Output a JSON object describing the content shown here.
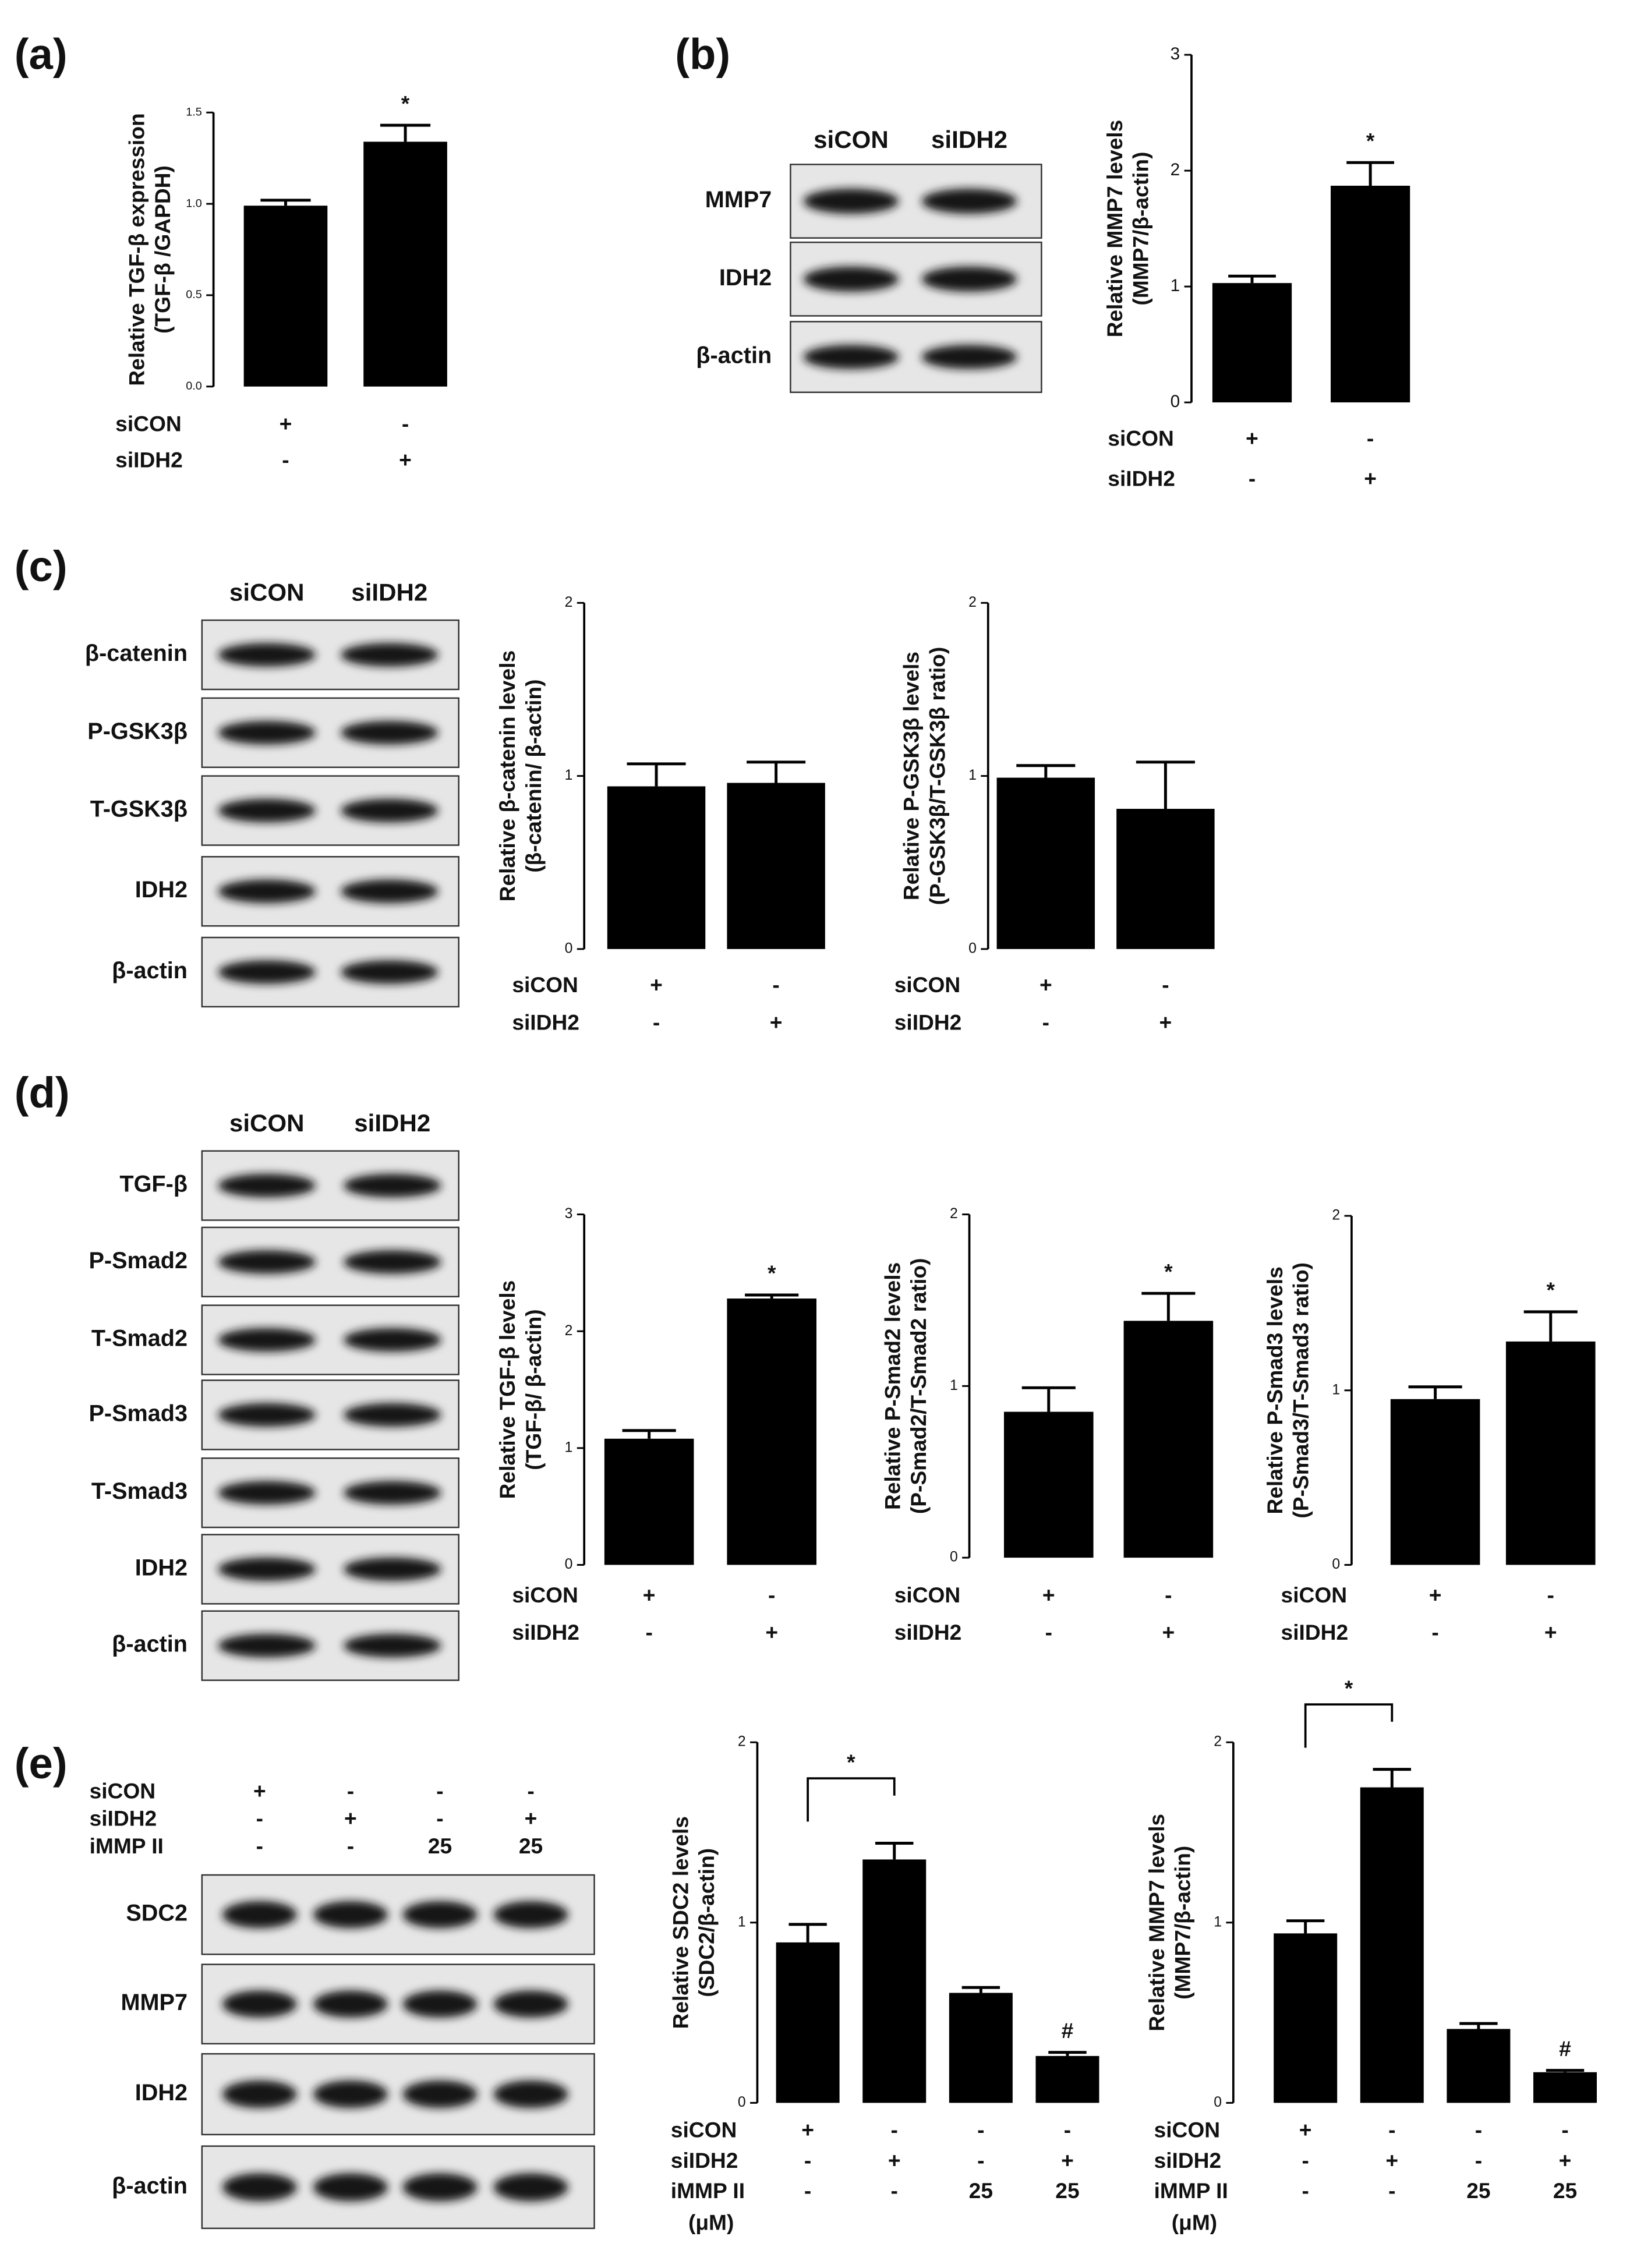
{
  "panels": [
    "(a)",
    "(b)",
    "(c)",
    "(d)",
    "(e)"
  ],
  "chart_data": [
    {
      "type": "bar",
      "y_label": [
        "Relative TGF-β expression",
        "(TGF-β /GAPDH)"
      ],
      "ylim": [
        0,
        1.5
      ],
      "yticks": [
        {
          "value": 0,
          "label": "0.0"
        },
        {
          "value": 0.5,
          "label": "0.5"
        },
        {
          "value": 1,
          "label": "1.0"
        },
        {
          "value": 1.5,
          "label": "1.5"
        }
      ],
      "values": [
        0.99,
        1.34
      ],
      "errors": [
        0.03,
        0.09
      ],
      "significance": [
        null,
        "*"
      ],
      "color": "#000000",
      "conditions": [
        {
          "name": "siCON",
          "values": [
            "+",
            "-"
          ]
        },
        {
          "name": "siIDH2",
          "values": [
            "-",
            "+"
          ]
        }
      ]
    },
    {
      "type": "bar",
      "y_label": [
        "Relative MMP7 levels",
        "(MMP7/β-actin)"
      ],
      "ylim": [
        0,
        3
      ],
      "yticks": [
        0,
        1,
        2,
        3
      ],
      "values": [
        1.03,
        1.87
      ],
      "errors": [
        0.06,
        0.2
      ],
      "significance": [
        null,
        "*"
      ],
      "color": "#000000",
      "conditions": [
        {
          "name": "siCON",
          "values": [
            "+",
            "-"
          ]
        },
        {
          "name": "siIDH2",
          "values": [
            "-",
            "+"
          ]
        }
      ]
    },
    {
      "type": "bar",
      "y_label": [
        "Relative β-catenin levels",
        "(β-catenin/ β-actin)"
      ],
      "ylim": [
        0,
        2
      ],
      "yticks": [
        0,
        1,
        2
      ],
      "values": [
        0.94,
        0.96
      ],
      "errors": [
        0.13,
        0.12
      ],
      "color": "#000000",
      "conditions": [
        {
          "name": "siCON",
          "values": [
            "+",
            "-"
          ]
        },
        {
          "name": "siIDH2",
          "values": [
            "-",
            "+"
          ]
        }
      ]
    },
    {
      "type": "bar",
      "y_label": [
        "Relative P-GSK3β levels",
        "(P-GSK3β/T-GSK3β ratio)"
      ],
      "ylim": [
        0,
        2
      ],
      "yticks": [
        0,
        1,
        2
      ],
      "values": [
        0.99,
        0.81
      ],
      "errors": [
        0.07,
        0.27
      ],
      "color": "#000000",
      "conditions": [
        {
          "name": "siCON",
          "values": [
            "+",
            "-"
          ]
        },
        {
          "name": "siIDH2",
          "values": [
            "-",
            "+"
          ]
        }
      ]
    },
    {
      "type": "bar",
      "y_label": [
        "Relative TGF-β levels",
        "(TGF-β/ β-actin)"
      ],
      "ylim": [
        0,
        3
      ],
      "yticks": [
        0,
        1,
        2,
        3
      ],
      "values": [
        1.08,
        2.28
      ],
      "errors": [
        0.07,
        0.03
      ],
      "significance": [
        null,
        "*"
      ],
      "color": "#000000",
      "conditions": [
        {
          "name": "siCON",
          "values": [
            "+",
            "-"
          ]
        },
        {
          "name": "siIDH2",
          "values": [
            "-",
            "+"
          ]
        }
      ]
    },
    {
      "type": "bar",
      "y_label": [
        "Relative P-Smad2 levels",
        "(P-Smad2/T-Smad2 ratio)"
      ],
      "ylim": [
        0,
        2
      ],
      "yticks": [
        0,
        1,
        2
      ],
      "values": [
        0.85,
        1.38
      ],
      "errors": [
        0.14,
        0.16
      ],
      "significance": [
        null,
        "*"
      ],
      "color": "#000000",
      "conditions": [
        {
          "name": "siCON",
          "values": [
            "+",
            "-"
          ]
        },
        {
          "name": "siIDH2",
          "values": [
            "-",
            "+"
          ]
        }
      ]
    },
    {
      "type": "bar",
      "y_label": [
        "Relative P-Smad3 levels",
        "(P-Smad3/T-Smad3 ratio)"
      ],
      "ylim": [
        0,
        2
      ],
      "yticks": [
        0,
        1,
        2
      ],
      "values": [
        0.95,
        1.28
      ],
      "errors": [
        0.07,
        0.17
      ],
      "significance": [
        null,
        "*"
      ],
      "color": "#000000",
      "conditions": [
        {
          "name": "siCON",
          "values": [
            "+",
            "-"
          ]
        },
        {
          "name": "siIDH2",
          "values": [
            "-",
            "+"
          ]
        }
      ]
    },
    {
      "type": "bar",
      "y_label": [
        "Relative SDC2 levels",
        "(SDC2/β-actin)"
      ],
      "ylim": [
        0,
        2
      ],
      "yticks": [
        0,
        1,
        2
      ],
      "values": [
        0.89,
        1.35,
        0.61,
        0.26
      ],
      "errors": [
        0.1,
        0.09,
        0.03,
        0.02
      ],
      "significance": [
        null,
        null,
        null,
        "#"
      ],
      "bracket": {
        "text": "*",
        "from": 0,
        "to": 1
      },
      "color": "#000000",
      "conditions": [
        {
          "name": "siCON",
          "values": [
            "+",
            "-",
            "-",
            "-"
          ]
        },
        {
          "name": "siIDH2",
          "values": [
            "-",
            "+",
            "-",
            "+"
          ]
        },
        {
          "name": "iMMP II",
          "values": [
            "-",
            "-",
            25,
            25
          ],
          "unit": "(μM)"
        }
      ]
    },
    {
      "type": "bar",
      "y_label": [
        "Relative MMP7 levels",
        "(MMP7/β-actin)"
      ],
      "ylim": [
        0,
        2
      ],
      "yticks": [
        0,
        1,
        2
      ],
      "values": [
        0.94,
        1.75,
        0.41,
        0.17
      ],
      "errors": [
        0.07,
        0.1,
        0.03,
        0.01
      ],
      "significance": [
        null,
        null,
        null,
        "#"
      ],
      "bracket": {
        "text": "*",
        "from": 0,
        "to": 1
      },
      "color": "#000000",
      "conditions": [
        {
          "name": "siCON",
          "values": [
            "+",
            "-",
            "-",
            "-"
          ]
        },
        {
          "name": "siIDH2",
          "values": [
            "-",
            "+",
            "-",
            "+"
          ]
        },
        {
          "name": "iMMP II",
          "values": [
            "-",
            "-",
            25,
            25
          ],
          "unit": "(μM)"
        }
      ]
    }
  ],
  "blots": [
    {
      "lanes": [
        "siCON",
        "siIDH2"
      ],
      "rows": [
        "MMP7",
        "IDH2",
        "β-actin"
      ]
    },
    {
      "lanes": [
        "siCON",
        "siIDH2"
      ],
      "rows": [
        "β-catenin",
        "P-GSK3β",
        "T-GSK3β",
        "IDH2",
        "β-actin"
      ]
    },
    {
      "lanes": [
        "siCON",
        "siIDH2"
      ],
      "rows": [
        "TGF-β",
        "P-Smad2",
        "T-Smad2",
        "P-Smad3",
        "T-Smad3",
        "IDH2",
        "β-actin"
      ]
    },
    {
      "conditions": [
        {
          "name": "siCON",
          "values": [
            "+",
            "-",
            "-",
            "-"
          ]
        },
        {
          "name": "siIDH2",
          "values": [
            "-",
            "+",
            "-",
            "+"
          ]
        },
        {
          "name": "iMMP II",
          "values": [
            "-",
            "-",
            25,
            25
          ]
        }
      ],
      "rows": [
        "SDC2",
        "MMP7",
        "IDH2",
        "β-actin"
      ]
    }
  ]
}
